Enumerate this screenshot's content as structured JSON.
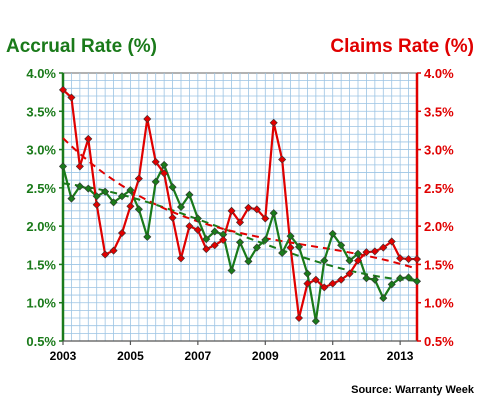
{
  "colors": {
    "accrual": "#1a7a1a",
    "claims": "#e00000",
    "grid": "#9cc4e4",
    "plot_border": "#666666"
  },
  "chart_data": {
    "type": "line",
    "left_axis_label": "Accrual Rate (%)",
    "right_axis_label": "Claims Rate (%)",
    "source": "Source: Warranty Week",
    "ylim": [
      0.5,
      4.0
    ],
    "y_ticks": [
      "4.0%",
      "3.5%",
      "3.0%",
      "2.5%",
      "2.0%",
      "1.5%",
      "1.0%",
      "0.5%"
    ],
    "xlim": [
      2003,
      2013.5
    ],
    "x_ticks": [
      "2003",
      "2005",
      "2007",
      "2009",
      "2011",
      "2013"
    ],
    "grid": "on",
    "trendlines": "dashed polynomial fit per series",
    "series": [
      {
        "name": "Accrual Rate (%)",
        "axis": "left",
        "color": "#1a7a1a",
        "x": [
          2003.0,
          2003.25,
          2003.5,
          2003.75,
          2004.0,
          2004.25,
          2004.5,
          2004.75,
          2005.0,
          2005.25,
          2005.5,
          2005.75,
          2006.0,
          2006.25,
          2006.5,
          2006.75,
          2007.0,
          2007.25,
          2007.5,
          2007.75,
          2008.0,
          2008.25,
          2008.5,
          2008.75,
          2009.0,
          2009.25,
          2009.5,
          2009.75,
          2010.0,
          2010.25,
          2010.5,
          2010.75,
          2011.0,
          2011.25,
          2011.5,
          2011.75,
          2012.0,
          2012.25,
          2012.5,
          2012.75,
          2013.0,
          2013.25,
          2013.5
        ],
        "values": [
          2.78,
          2.36,
          2.52,
          2.49,
          2.39,
          2.45,
          2.31,
          2.39,
          2.47,
          2.22,
          1.86,
          2.58,
          2.8,
          2.51,
          2.25,
          2.41,
          2.1,
          1.83,
          1.93,
          1.89,
          1.42,
          1.79,
          1.54,
          1.72,
          1.82,
          2.17,
          1.65,
          1.87,
          1.73,
          1.38,
          0.76,
          1.55,
          1.9,
          1.75,
          1.55,
          1.64,
          1.32,
          1.3,
          1.06,
          1.24,
          1.32,
          1.33,
          1.28
        ]
      },
      {
        "name": "Claims Rate (%)",
        "axis": "right",
        "color": "#e00000",
        "x": [
          2003.0,
          2003.25,
          2003.5,
          2003.75,
          2004.0,
          2004.25,
          2004.5,
          2004.75,
          2005.0,
          2005.25,
          2005.5,
          2005.75,
          2006.0,
          2006.25,
          2006.5,
          2006.75,
          2007.0,
          2007.25,
          2007.5,
          2007.75,
          2008.0,
          2008.25,
          2008.5,
          2008.75,
          2009.0,
          2009.25,
          2009.5,
          2009.75,
          2010.0,
          2010.25,
          2010.5,
          2010.75,
          2011.0,
          2011.25,
          2011.5,
          2011.75,
          2012.0,
          2012.25,
          2012.5,
          2012.75,
          2013.0,
          2013.25,
          2013.5
        ],
        "values": [
          3.78,
          3.68,
          2.78,
          3.14,
          2.28,
          1.63,
          1.68,
          1.91,
          2.26,
          2.62,
          3.4,
          2.84,
          2.69,
          2.11,
          1.58,
          2.0,
          1.95,
          1.7,
          1.75,
          1.82,
          2.2,
          2.05,
          2.24,
          2.22,
          2.1,
          3.35,
          2.87,
          1.72,
          0.8,
          1.25,
          1.3,
          1.2,
          1.25,
          1.3,
          1.38,
          1.55,
          1.66,
          1.67,
          1.72,
          1.8,
          1.58,
          1.57,
          1.57
        ]
      }
    ]
  }
}
